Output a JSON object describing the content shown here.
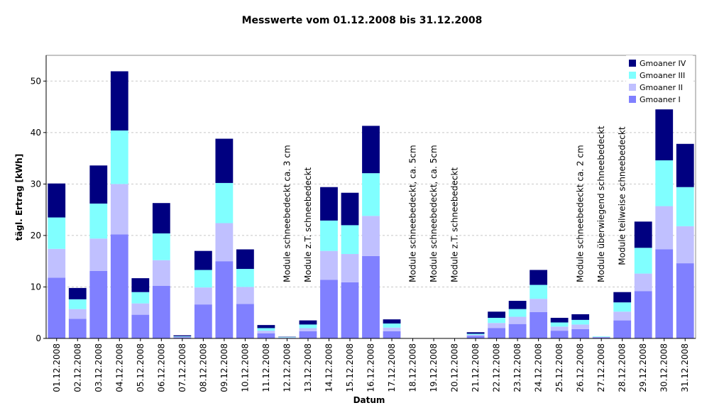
{
  "chart_data": {
    "type": "bar",
    "stacked": true,
    "title": "Messwerte vom 01.12.2008 bis 31.12.2008",
    "x_label": "Datum",
    "y_label": "tägl. Ertrag [kWh]",
    "categories": [
      "01.12.2008",
      "02.12.2008",
      "03.12.2008",
      "04.12.2008",
      "05.12.2008",
      "06.12.2008",
      "07.12.2008",
      "08.12.2008",
      "09.12.2008",
      "10.12.2008",
      "11.12.2008",
      "12.12.2008",
      "13.12.2008",
      "14.12.2008",
      "15.12.2008",
      "16.12.2008",
      "17.12.2008",
      "18.12.2008",
      "19.12.2008",
      "20.12.2008",
      "21.12.2008",
      "22.12.2008",
      "23.12.2008",
      "24.12.2008",
      "25.12.2008",
      "26.12.2008",
      "27.12.2008",
      "28.12.2008",
      "29.12.2008",
      "30.12.2008",
      "31.12.2008"
    ],
    "series": [
      {
        "name": "Gmoaner I",
        "color": "#8080ff",
        "values": [
          11.8,
          3.8,
          13.1,
          20.2,
          4.6,
          10.2,
          0.2,
          6.6,
          15.0,
          6.7,
          1.0,
          0.1,
          1.4,
          11.4,
          10.9,
          16.0,
          1.4,
          0,
          0,
          0,
          0.5,
          2.0,
          2.8,
          5.1,
          1.5,
          1.8,
          0.2,
          3.5,
          9.2,
          17.3,
          14.6
        ]
      },
      {
        "name": "Gmoaner II",
        "color": "#c0c0ff",
        "values": [
          5.6,
          1.9,
          6.3,
          9.8,
          2.2,
          5.0,
          0.1,
          3.3,
          7.4,
          3.3,
          0.5,
          0.1,
          0.6,
          5.6,
          5.5,
          7.8,
          0.7,
          0,
          0,
          0,
          0.2,
          1.0,
          1.4,
          2.6,
          0.8,
          0.9,
          0.1,
          1.7,
          3.4,
          8.4,
          7.2
        ]
      },
      {
        "name": "Gmoaner III",
        "color": "#80ffff",
        "values": [
          6.1,
          1.9,
          6.8,
          10.4,
          2.2,
          5.2,
          0.1,
          3.4,
          7.8,
          3.5,
          0.5,
          0.1,
          0.7,
          5.9,
          5.6,
          8.3,
          0.8,
          0,
          0,
          0,
          0.2,
          1.0,
          1.5,
          2.7,
          0.8,
          0.9,
          0.1,
          1.8,
          5.0,
          8.9,
          7.6
        ]
      },
      {
        "name": "Gmoaner IV",
        "color": "#000080",
        "values": [
          6.6,
          2.2,
          7.4,
          11.5,
          2.7,
          5.9,
          0.2,
          3.7,
          8.6,
          3.8,
          0.6,
          0.05,
          0.8,
          6.5,
          6.3,
          9.2,
          0.8,
          0,
          0,
          0,
          0.3,
          1.2,
          1.6,
          2.9,
          0.9,
          1.1,
          0.0,
          2.0,
          5.1,
          9.9,
          8.4
        ]
      }
    ],
    "annotations": [
      {
        "category": "12.12.2008",
        "text": "Module schneebedeckt ca. 3 cm"
      },
      {
        "category": "13.12.2008",
        "text": "Module z.T. schneebedeckt"
      },
      {
        "category": "18.12.2008",
        "text": "Module schneebedeckt, ca. 5cm"
      },
      {
        "category": "19.12.2008",
        "text": "Module schneebedeckt, ca. 5cm"
      },
      {
        "category": "20.12.2008",
        "text": "Module z.T. schneebedeckt"
      },
      {
        "category": "26.12.2008",
        "text": "Module schneebedeckt ca. 2 cm"
      },
      {
        "category": "27.12.2008",
        "text": "Module überwiegend schneebedeckt"
      },
      {
        "category": "28.12.2008",
        "text": "Module teilweise schneebedeckt"
      }
    ],
    "ylim": [
      0,
      55
    ],
    "yticks": [
      0,
      10,
      20,
      30,
      40,
      50
    ],
    "grid": true,
    "legend": "top-right"
  }
}
